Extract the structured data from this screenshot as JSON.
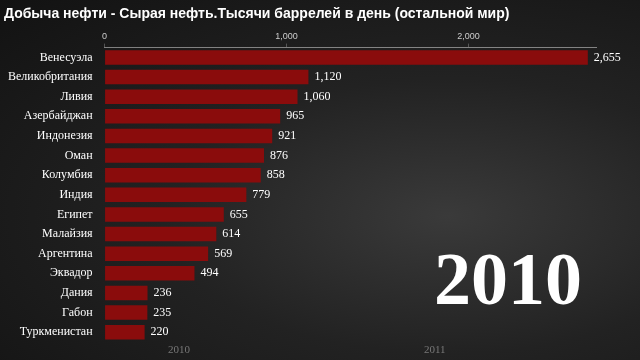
{
  "chart_data": {
    "type": "bar",
    "title": "Добыча нефти - Сырая нефть.Тысячи баррелей в день (остальной мир)",
    "orientation": "horizontal",
    "categories": [
      "Венесуэла",
      "Великобритания",
      "Ливия",
      "Азербайджан",
      "Индонезия",
      "Оман",
      "Колумбия",
      "Индия",
      "Египет",
      "Малайзия",
      "Аргентина",
      "Эквадор",
      "Дания",
      "Габон",
      "Туркменистан"
    ],
    "values": [
      2655,
      1120,
      1060,
      965,
      921,
      876,
      858,
      779,
      655,
      614,
      569,
      494,
      236,
      235,
      220
    ],
    "value_labels": [
      "2,655",
      "1,120",
      "1,060",
      "965",
      "921",
      "876",
      "858",
      "779",
      "655",
      "614",
      "569",
      "494",
      "236",
      "235",
      "220"
    ],
    "data_labels": true,
    "color": "#8a0c0c",
    "xlim": [
      0,
      2700
    ],
    "xticks": [
      0,
      {
        "value": 1000,
        "label": "1,000"
      },
      {
        "value": 2000,
        "label": "2,000"
      }
    ],
    "grid": false,
    "annotations": [
      "2010"
    ],
    "timeline_labels": [
      "2010",
      "2011"
    ]
  }
}
